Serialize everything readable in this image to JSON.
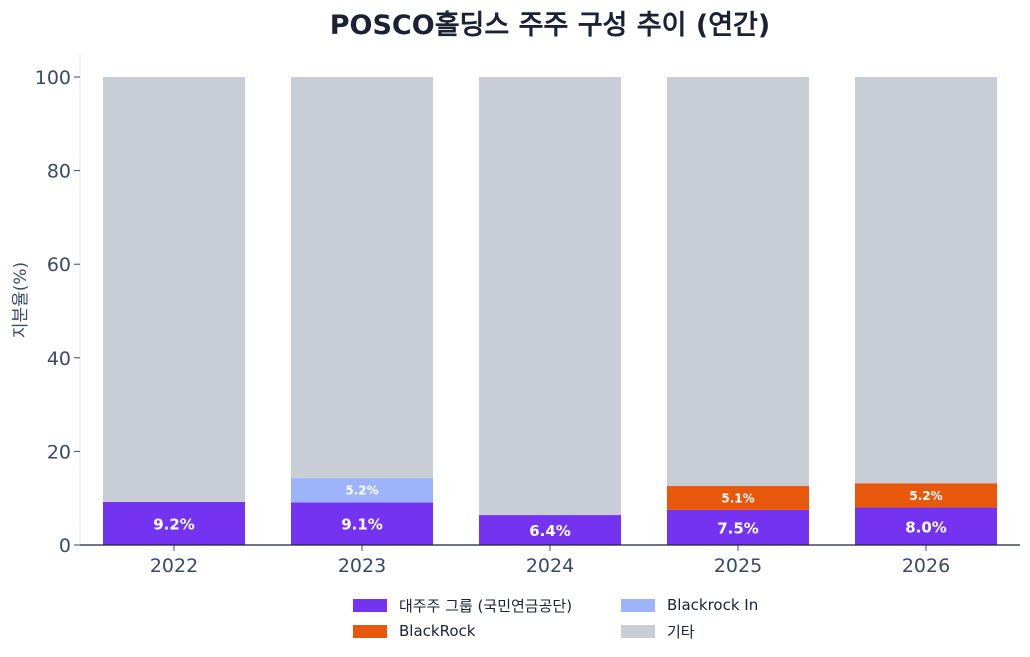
{
  "chart_data": {
    "type": "bar",
    "stacked": true,
    "title": "POSCO홀딩스 주주 구성 추이 (연간)",
    "xlabel": "",
    "ylabel": "지분율(%)",
    "ylim": [
      0,
      105
    ],
    "yticks": [
      "0",
      "20",
      "40",
      "60",
      "80",
      "100"
    ],
    "categories": [
      "2022",
      "2023",
      "2024",
      "2025",
      "2026"
    ],
    "grid": false,
    "legend_position": "bottom",
    "series": [
      {
        "name": "대주주 그룹 (국민연금공단)",
        "color": "#7433f0",
        "values": [
          9.2,
          9.1,
          6.4,
          7.5,
          8.0
        ],
        "labels": [
          "9.2%",
          "9.1%",
          "6.4%",
          "7.5%",
          "8.0%"
        ]
      },
      {
        "name": "Blackrock In",
        "color": "#9db3fb",
        "values": [
          0,
          5.2,
          0,
          0,
          0
        ],
        "labels": [
          "",
          "5.2%",
          "",
          "",
          ""
        ]
      },
      {
        "name": "BlackRock",
        "color": "#e8580c",
        "values": [
          0,
          0,
          0,
          5.1,
          5.2
        ],
        "labels": [
          "",
          "",
          "",
          "5.1%",
          "5.2%"
        ]
      },
      {
        "name": "기타",
        "color": "#c8cdd6",
        "values": [
          90.8,
          85.7,
          93.6,
          87.4,
          86.8
        ],
        "labels": [
          "",
          "",
          "",
          "",
          ""
        ]
      }
    ]
  }
}
